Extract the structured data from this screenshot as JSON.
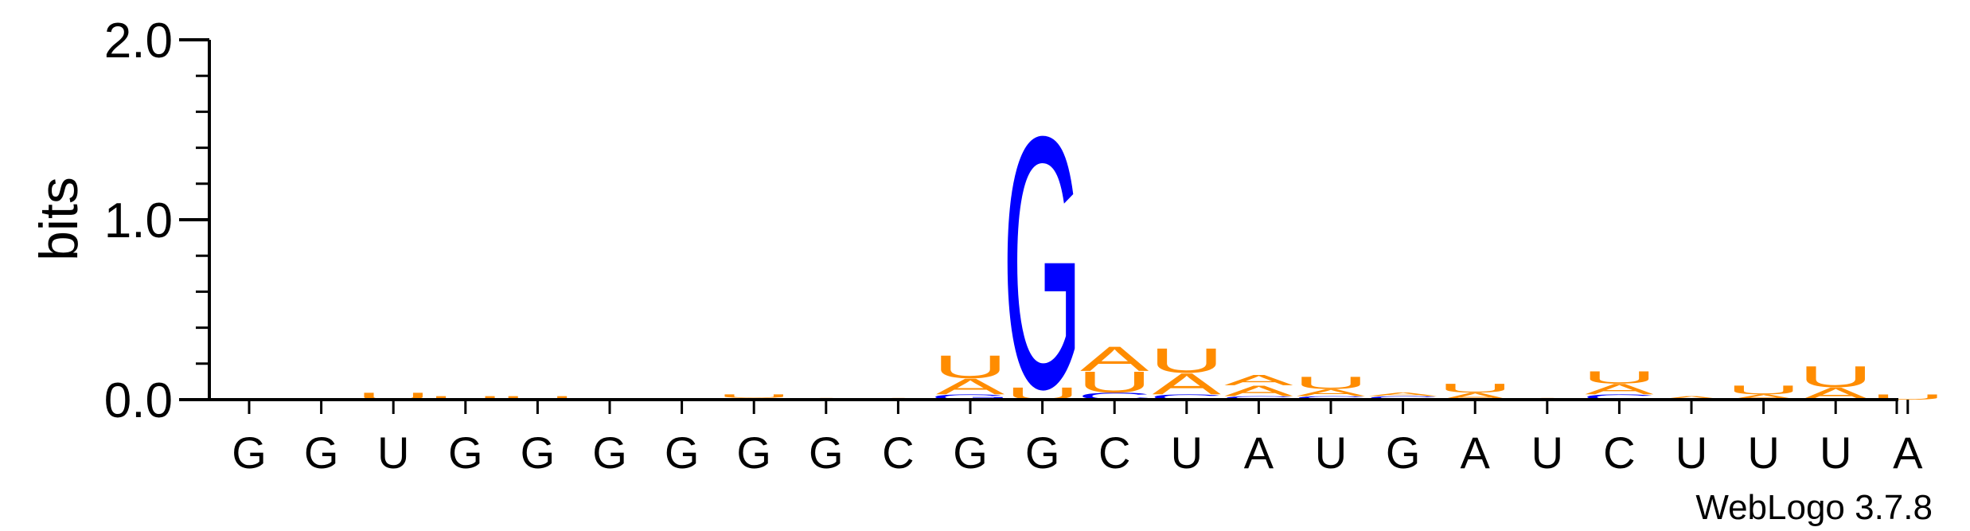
{
  "chart_data": {
    "type": "sequence-logo",
    "ylabel": "bits",
    "ylim": [
      0,
      2.0
    ],
    "yticks": [
      "0.0",
      "1.0",
      "2.0"
    ],
    "credit": "WebLogo 3.7.8",
    "colors": {
      "G": "#0000ff",
      "C": "#0000ff",
      "A": "#ff8c00",
      "U": "#ff8c00"
    },
    "positions": [
      {
        "label": "G",
        "stack": []
      },
      {
        "label": "G",
        "stack": []
      },
      {
        "label": "U",
        "stack": [
          {
            "letter": "U",
            "bits": 0.04
          }
        ]
      },
      {
        "label": "G",
        "stack": [
          {
            "letter": "U",
            "bits": 0.02
          }
        ]
      },
      {
        "label": "G",
        "stack": [
          {
            "letter": "U",
            "bits": 0.02
          }
        ]
      },
      {
        "label": "G",
        "stack": []
      },
      {
        "label": "G",
        "stack": []
      },
      {
        "label": "G",
        "stack": [
          {
            "letter": "A",
            "bits": 0.01
          },
          {
            "letter": "U",
            "bits": 0.02
          }
        ]
      },
      {
        "label": "G",
        "stack": [
          {
            "letter": "A",
            "bits": 0.01
          }
        ]
      },
      {
        "label": "C",
        "stack": [
          {
            "letter": "A",
            "bits": 0.01
          }
        ]
      },
      {
        "label": "G",
        "stack": [
          {
            "letter": "G",
            "bits": 0.03
          },
          {
            "letter": "A",
            "bits": 0.09
          },
          {
            "letter": "U",
            "bits": 0.13
          }
        ]
      },
      {
        "label": "G",
        "stack": [
          {
            "letter": "U",
            "bits": 0.07
          },
          {
            "letter": "G",
            "bits": 1.44
          }
        ]
      },
      {
        "label": "C",
        "stack": [
          {
            "letter": "C",
            "bits": 0.04
          },
          {
            "letter": "U",
            "bits": 0.12
          },
          {
            "letter": "A",
            "bits": 0.14
          }
        ]
      },
      {
        "label": "U",
        "stack": [
          {
            "letter": "C",
            "bits": 0.03
          },
          {
            "letter": "A",
            "bits": 0.12
          },
          {
            "letter": "U",
            "bits": 0.14
          }
        ]
      },
      {
        "label": "A",
        "stack": [
          {
            "letter": "C",
            "bits": 0.02
          },
          {
            "letter": "A",
            "bits": 0.06
          },
          {
            "letter": "A",
            "bits": 0.06
          }
        ]
      },
      {
        "label": "U",
        "stack": [
          {
            "letter": "C",
            "bits": 0.02
          },
          {
            "letter": "A",
            "bits": 0.04
          },
          {
            "letter": "U",
            "bits": 0.07
          }
        ]
      },
      {
        "label": "G",
        "stack": [
          {
            "letter": "C",
            "bits": 0.02
          },
          {
            "letter": "A",
            "bits": 0.02
          }
        ]
      },
      {
        "label": "A",
        "stack": [
          {
            "letter": "A",
            "bits": 0.04
          },
          {
            "letter": "U",
            "bits": 0.05
          }
        ]
      },
      {
        "label": "U",
        "stack": [
          {
            "letter": "A",
            "bits": 0.01
          }
        ]
      },
      {
        "label": "C",
        "stack": [
          {
            "letter": "C",
            "bits": 0.03
          },
          {
            "letter": "A",
            "bits": 0.06
          },
          {
            "letter": "U",
            "bits": 0.07
          }
        ]
      },
      {
        "label": "U",
        "stack": [
          {
            "letter": "A",
            "bits": 0.02
          }
        ]
      },
      {
        "label": "U",
        "stack": [
          {
            "letter": "A",
            "bits": 0.03
          },
          {
            "letter": "U",
            "bits": 0.05
          }
        ]
      },
      {
        "label": "U",
        "stack": [
          {
            "letter": "A",
            "bits": 0.07
          },
          {
            "letter": "U",
            "bits": 0.12
          }
        ]
      },
      {
        "label": "A",
        "stack": [
          {
            "letter": "U",
            "bits": 0.03
          }
        ]
      }
    ]
  }
}
